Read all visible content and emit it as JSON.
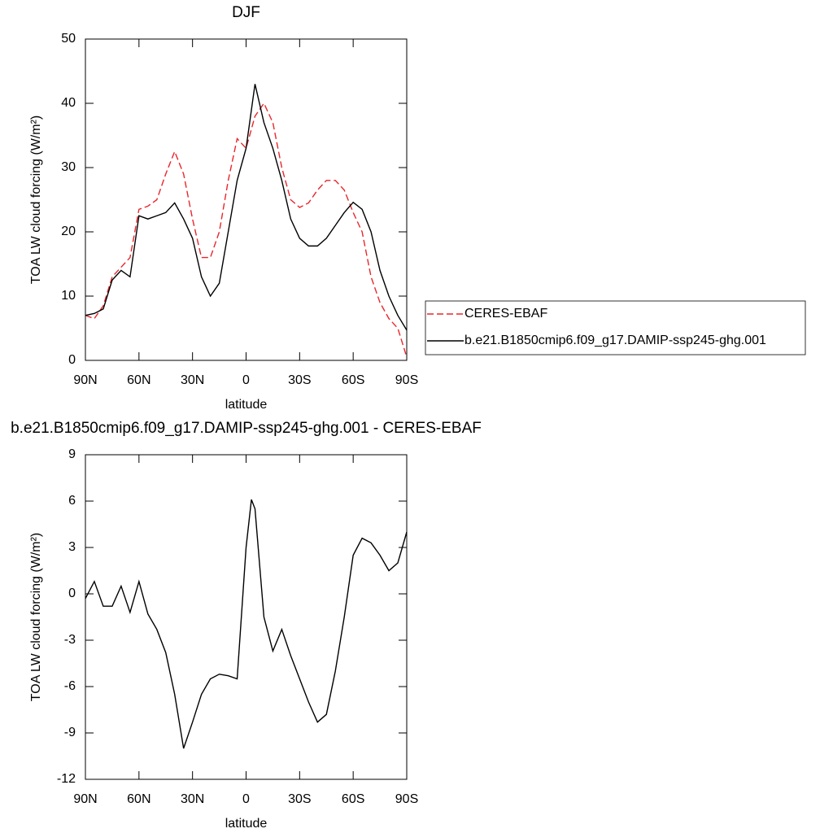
{
  "chart_data": [
    {
      "type": "line",
      "title": "DJF",
      "xlabel": "latitude",
      "ylabel": "TOA LW cloud forcing (W/m²)",
      "x": [
        90,
        85,
        80,
        75,
        70,
        65,
        60,
        55,
        50,
        45,
        40,
        35,
        30,
        25,
        20,
        15,
        10,
        5,
        0,
        -5,
        -10,
        -15,
        -20,
        -25,
        -30,
        -35,
        -40,
        -45,
        -50,
        -55,
        -60,
        -65,
        -70,
        -75,
        -80,
        -85,
        -90
      ],
      "xlim": [
        90,
        -90
      ],
      "xticks": [
        {
          "value": 90,
          "label": "90N"
        },
        {
          "value": 60,
          "label": "60N"
        },
        {
          "value": 30,
          "label": "30N"
        },
        0,
        {
          "value": -30,
          "label": "30S"
        },
        {
          "value": -60,
          "label": "60S"
        },
        {
          "value": -90,
          "label": "90S"
        }
      ],
      "ylim": [
        0,
        50
      ],
      "yticks": [
        0,
        10,
        20,
        30,
        40,
        50
      ],
      "legend": "right",
      "series": [
        {
          "name": "CERES-EBAF",
          "color": "#e8262b",
          "style": "dashed",
          "values": [
            7,
            6.5,
            8.5,
            13,
            14.5,
            16,
            23.5,
            24,
            25,
            29,
            32.5,
            29,
            22,
            16,
            16,
            20,
            28,
            34.5,
            33,
            38,
            40,
            37,
            30,
            25,
            23.8,
            24.5,
            26.5,
            28,
            28,
            26.5,
            23,
            20,
            13,
            9,
            6.5,
            5,
            0.5
          ]
        },
        {
          "name": "b.e21.B1850cmip6.f09_g17.DAMIP-ssp245-ghg.001",
          "color": "#000000",
          "style": "solid",
          "values": [
            7,
            7.3,
            8,
            12.5,
            14,
            13,
            22.5,
            22,
            22.5,
            23,
            24.5,
            22,
            19,
            13,
            10,
            12,
            20,
            28,
            33,
            43,
            37,
            33,
            28,
            22,
            19,
            17.8,
            17.8,
            19,
            21,
            23,
            24.6,
            23.5,
            20,
            14,
            10,
            7,
            4.7
          ]
        }
      ]
    },
    {
      "type": "line",
      "title": "b.e21.B1850cmip6.f09_g17.DAMIP-ssp245-ghg.001 - CERES-EBAF",
      "xlabel": "latitude",
      "ylabel": "TOA LW cloud forcing (W/m²)",
      "x": [
        90,
        85,
        80,
        75,
        70,
        65,
        60,
        55,
        50,
        45,
        40,
        35,
        30,
        25,
        20,
        15,
        10,
        5,
        0,
        -3,
        -5,
        -10,
        -15,
        -20,
        -25,
        -30,
        -35,
        -40,
        -45,
        -50,
        -55,
        -60,
        -65,
        -70,
        -75,
        -80,
        -85,
        -90
      ],
      "xlim": [
        90,
        -90
      ],
      "xticks": [
        {
          "value": 90,
          "label": "90N"
        },
        {
          "value": 60,
          "label": "60N"
        },
        {
          "value": 30,
          "label": "30N"
        },
        0,
        {
          "value": -30,
          "label": "30S"
        },
        {
          "value": -60,
          "label": "60S"
        },
        {
          "value": -90,
          "label": "90S"
        }
      ],
      "ylim": [
        -12,
        9
      ],
      "yticks": [
        -12,
        -9,
        -6,
        -3,
        0,
        3,
        6,
        9
      ],
      "series": [
        {
          "color": "#000000",
          "style": "solid",
          "values": [
            -0.3,
            0.8,
            -0.8,
            -0.8,
            0.5,
            -1.2,
            0.8,
            -1.3,
            -2.3,
            -3.8,
            -6.5,
            -10,
            -8.3,
            -6.5,
            -5.5,
            -5.2,
            -5.3,
            -5.5,
            3,
            6.1,
            5.5,
            -1.5,
            -3.7,
            -2.3,
            -4,
            -5.5,
            -7,
            -8.3,
            -7.8,
            -5,
            -1.5,
            2.5,
            3.6,
            3.3,
            2.5,
            1.5,
            2,
            4
          ]
        }
      ]
    }
  ]
}
